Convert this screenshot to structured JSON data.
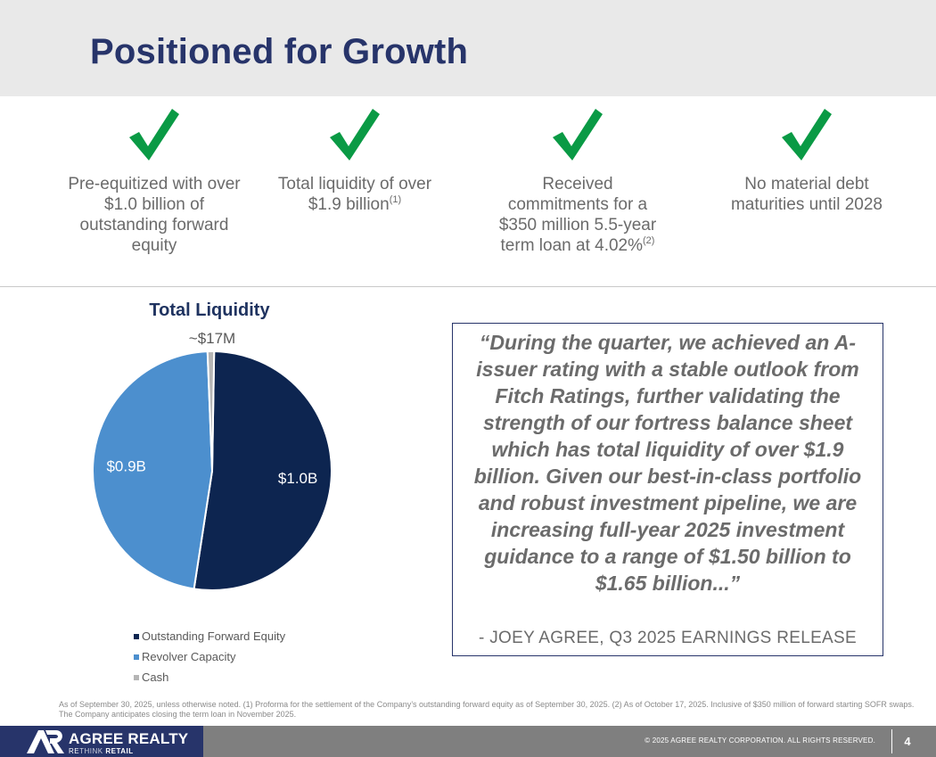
{
  "header": {
    "title": "Positioned for Growth"
  },
  "highlights": [
    {
      "text": "Pre-equitized with over $1.0 billion of outstanding forward equity",
      "footnote": ""
    },
    {
      "text": "Total liquidity of over $1.9 billion",
      "footnote": "(1)"
    },
    {
      "text": "Received commitments for a $350 million 5.5-year term loan at 4.02%",
      "footnote": "(2)"
    },
    {
      "text": "No material debt maturities until 2028",
      "footnote": ""
    }
  ],
  "colors": {
    "title": "#27346a",
    "check": "#0a9a45",
    "forward_equity": "#0d2550",
    "revolver": "#4c8fce",
    "cash": "#b5b5b5"
  },
  "chart_data": {
    "type": "pie",
    "title": "Total Liquidity",
    "series": [
      {
        "name": "Outstanding Forward Equity",
        "value": 1.0,
        "label": "$1.0B"
      },
      {
        "name": "Revolver Capacity",
        "value": 0.9,
        "label": "$0.9B"
      },
      {
        "name": "Cash",
        "value": 0.017,
        "label": "~$17M"
      }
    ],
    "legend_position": "bottom-left"
  },
  "quote": {
    "text": "“During the quarter, we achieved an A- issuer rating with a stable outlook from Fitch Ratings, further validating the strength of our fortress balance sheet which has total liquidity of over $1.9 billion. Given our best-in-class portfolio and robust investment pipeline, we are increasing full-year 2025 investment guidance to a range of $1.50 billion to $1.65 billion...”",
    "attribution": "- JOEY AGREE, Q3 2025 EARNINGS RELEASE"
  },
  "footnote": "As of September 30, 2025, unless otherwise noted. (1) Proforma for the settlement of the Company’s outstanding forward equity as of September 30, 2025. (2) As of October 17, 2025. Inclusive of $350 million of forward starting SOFR swaps. The Company anticipates closing the term loan in November 2025.",
  "footer": {
    "logo_name": "AGREE REALTY",
    "logo_tagline_prefix": "RE",
    "logo_tagline_mid": "THINK",
    "logo_tagline_suffix": " RETAIL",
    "copyright": "© 2025 AGREE REALTY CORPORATION. ALL RIGHTS RESERVED.",
    "page_number": "4"
  }
}
